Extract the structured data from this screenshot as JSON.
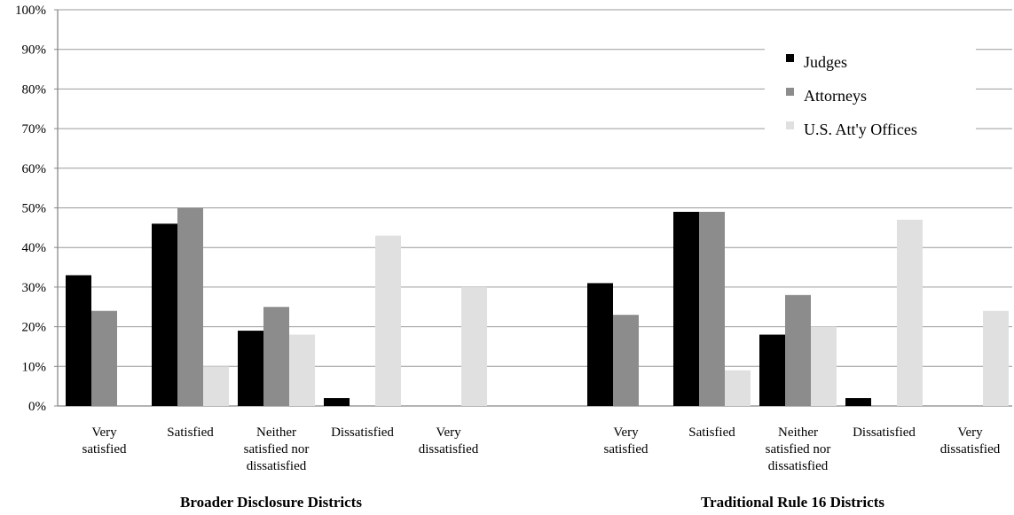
{
  "chart_data": {
    "type": "bar",
    "y_ticks": [
      "0%",
      "10%",
      "20%",
      "30%",
      "40%",
      "50%",
      "60%",
      "70%",
      "80%",
      "90%",
      "100%"
    ],
    "ylim": [
      0,
      100
    ],
    "grid": true,
    "legend_position": "top-right",
    "categories": [
      [
        "Very",
        "satisfied"
      ],
      [
        "Satisfied"
      ],
      [
        "Neither",
        "satisfied nor",
        "dissatisfied"
      ],
      [
        "Dissatisfied"
      ],
      [
        "Very",
        "dissatisfied"
      ]
    ],
    "groups": [
      {
        "label": "Broader Disclosure Districts",
        "series": [
          {
            "name": "Judges",
            "values": [
              33,
              46,
              19,
              2,
              0
            ]
          },
          {
            "name": "Attorneys",
            "values": [
              24,
              50,
              25,
              0,
              0
            ]
          },
          {
            "name": "U.S. Att'y Offices",
            "values": [
              0,
              10,
              18,
              43,
              30
            ]
          }
        ]
      },
      {
        "label": "Traditional Rule 16 Districts",
        "series": [
          {
            "name": "Judges",
            "values": [
              31,
              49,
              18,
              2,
              0
            ]
          },
          {
            "name": "Attorneys",
            "values": [
              23,
              49,
              28,
              0,
              0
            ]
          },
          {
            "name": "U.S. Att'y Offices",
            "values": [
              0,
              9,
              20,
              47,
              24
            ]
          }
        ]
      }
    ],
    "legend": [
      {
        "name": "Judges",
        "color": "#000000"
      },
      {
        "name": "Attorneys",
        "color": "#8c8c8c"
      },
      {
        "name": "U.S. Att'y Offices",
        "color": "#e0e0e0"
      }
    ],
    "colors": [
      "#000000",
      "#8c8c8c",
      "#e0e0e0"
    ]
  }
}
